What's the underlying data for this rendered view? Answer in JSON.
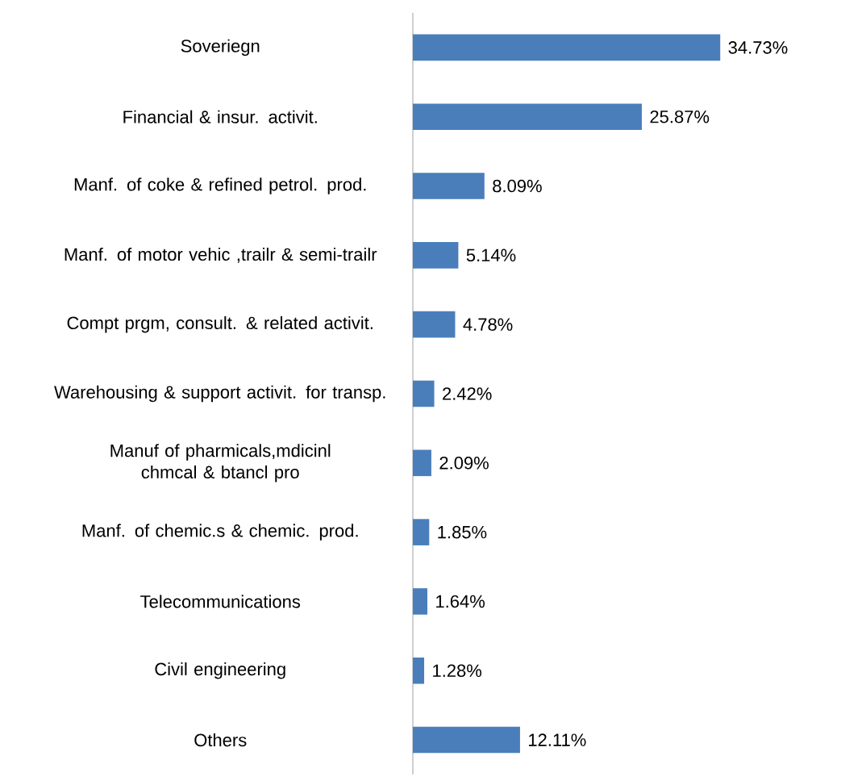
{
  "chart_data": {
    "type": "bar",
    "orientation": "horizontal",
    "categories": [
      "Soveriegn",
      "Financial & insur. activit.",
      "Manf. of coke & refined petrol. prod.",
      "Manf. of motor vehic ,trailr & semi-trailr",
      "Compt prgm, consult. & related activit.",
      "Warehousing & support activit. for transp.",
      "Manuf of pharmicals,mdicinl chmcal & btancl pro",
      "Manf. of chemic.s & chemic. prod.",
      "Telecommunications",
      "Civil engineering",
      "Others"
    ],
    "values": [
      34.73,
      25.87,
      8.09,
      5.14,
      4.78,
      2.42,
      2.09,
      1.85,
      1.64,
      1.28,
      12.11
    ],
    "value_labels": [
      "34.73%",
      "25.87%",
      "8.09%",
      "5.14%",
      "4.78%",
      "2.42%",
      "2.09%",
      "1.85%",
      "1.64%",
      "1.28%",
      "12.11%"
    ],
    "color": "#4a7ebb"
  }
}
